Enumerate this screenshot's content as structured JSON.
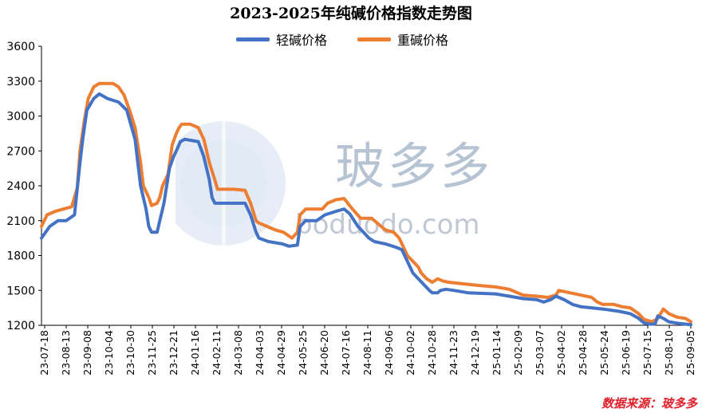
{
  "chart_data": {
    "type": "line",
    "title": "2023-2025年纯碱价格指数走势图",
    "xlabel": "",
    "ylabel": "",
    "ylim": [
      1200,
      3600
    ],
    "yticks": [
      1200,
      1500,
      1800,
      2100,
      2400,
      2700,
      3000,
      3300,
      3600
    ],
    "x_tick_labels": [
      "23-07-18",
      "23-08-13",
      "23-09-08",
      "23-10-04",
      "23-10-30",
      "23-11-25",
      "23-12-21",
      "24-01-16",
      "24-02-11",
      "24-03-08",
      "24-04-03",
      "24-04-29",
      "24-05-25",
      "24-06-20",
      "24-07-16",
      "24-08-11",
      "24-09-06",
      "24-10-02",
      "24-10-28",
      "24-11-23",
      "24-12-19",
      "25-01-14",
      "25-02-09",
      "25-03-07",
      "25-04-02",
      "25-04-28",
      "25-05-24",
      "25-06-19",
      "25-07-15",
      "25-08-10",
      "25-09-05"
    ],
    "grid": false,
    "legend_position": "top-center",
    "series": [
      {
        "name": "轻碱价格",
        "color": "#4472C4",
        "points": [
          [
            0,
            1950
          ],
          [
            6,
            2050
          ],
          [
            12,
            2100
          ],
          [
            18,
            2100
          ],
          [
            24,
            2150
          ],
          [
            28,
            2600
          ],
          [
            30,
            2800
          ],
          [
            33,
            3050
          ],
          [
            38,
            3150
          ],
          [
            42,
            3190
          ],
          [
            48,
            3150
          ],
          [
            56,
            3120
          ],
          [
            62,
            3050
          ],
          [
            68,
            2800
          ],
          [
            72,
            2400
          ],
          [
            76,
            2200
          ],
          [
            78,
            2050
          ],
          [
            80,
            2000
          ],
          [
            84,
            2000
          ],
          [
            86,
            2100
          ],
          [
            89,
            2250
          ],
          [
            93,
            2550
          ],
          [
            96,
            2650
          ],
          [
            98,
            2700
          ],
          [
            101,
            2780
          ],
          [
            104,
            2800
          ],
          [
            114,
            2780
          ],
          [
            118,
            2650
          ],
          [
            122,
            2450
          ],
          [
            124,
            2300
          ],
          [
            126,
            2250
          ],
          [
            130,
            2250
          ],
          [
            148,
            2250
          ],
          [
            152,
            2150
          ],
          [
            156,
            2000
          ],
          [
            158,
            1950
          ],
          [
            165,
            1920
          ],
          [
            175,
            1900
          ],
          [
            180,
            1880
          ],
          [
            186,
            1890
          ],
          [
            188,
            2050
          ],
          [
            192,
            2100
          ],
          [
            200,
            2100
          ],
          [
            206,
            2150
          ],
          [
            214,
            2180
          ],
          [
            220,
            2200
          ],
          [
            224,
            2160
          ],
          [
            230,
            2050
          ],
          [
            234,
            2000
          ],
          [
            238,
            1950
          ],
          [
            242,
            1920
          ],
          [
            250,
            1900
          ],
          [
            258,
            1870
          ],
          [
            262,
            1850
          ],
          [
            270,
            1650
          ],
          [
            274,
            1600
          ],
          [
            278,
            1550
          ],
          [
            282,
            1500
          ],
          [
            284,
            1480
          ],
          [
            288,
            1480
          ],
          [
            290,
            1500
          ],
          [
            294,
            1510
          ],
          [
            300,
            1500
          ],
          [
            310,
            1480
          ],
          [
            330,
            1470
          ],
          [
            340,
            1450
          ],
          [
            350,
            1430
          ],
          [
            360,
            1420
          ],
          [
            365,
            1400
          ],
          [
            370,
            1420
          ],
          [
            374,
            1450
          ],
          [
            380,
            1420
          ],
          [
            386,
            1380
          ],
          [
            392,
            1360
          ],
          [
            400,
            1350
          ],
          [
            408,
            1340
          ],
          [
            420,
            1320
          ],
          [
            428,
            1300
          ],
          [
            434,
            1260
          ],
          [
            438,
            1220
          ],
          [
            442,
            1210
          ],
          [
            446,
            1210
          ],
          [
            448,
            1280
          ],
          [
            452,
            1260
          ],
          [
            456,
            1230
          ],
          [
            464,
            1215
          ],
          [
            472,
            1205
          ]
        ]
      },
      {
        "name": "重碱价格",
        "color": "#ED7D31",
        "points": [
          [
            0,
            2050
          ],
          [
            4,
            2150
          ],
          [
            10,
            2180
          ],
          [
            16,
            2200
          ],
          [
            22,
            2220
          ],
          [
            26,
            2380
          ],
          [
            28,
            2700
          ],
          [
            31,
            2950
          ],
          [
            34,
            3150
          ],
          [
            38,
            3250
          ],
          [
            42,
            3280
          ],
          [
            52,
            3280
          ],
          [
            56,
            3250
          ],
          [
            60,
            3180
          ],
          [
            64,
            3050
          ],
          [
            68,
            2900
          ],
          [
            72,
            2600
          ],
          [
            74,
            2400
          ],
          [
            78,
            2300
          ],
          [
            80,
            2230
          ],
          [
            84,
            2250
          ],
          [
            86,
            2300
          ],
          [
            88,
            2400
          ],
          [
            92,
            2500
          ],
          [
            95,
            2750
          ],
          [
            98,
            2850
          ],
          [
            100,
            2900
          ],
          [
            102,
            2930
          ],
          [
            108,
            2930
          ],
          [
            114,
            2900
          ],
          [
            118,
            2800
          ],
          [
            122,
            2600
          ],
          [
            126,
            2450
          ],
          [
            128,
            2370
          ],
          [
            132,
            2370
          ],
          [
            140,
            2370
          ],
          [
            148,
            2360
          ],
          [
            152,
            2250
          ],
          [
            156,
            2100
          ],
          [
            158,
            2080
          ],
          [
            164,
            2050
          ],
          [
            170,
            2020
          ],
          [
            176,
            2000
          ],
          [
            182,
            1950
          ],
          [
            186,
            2000
          ],
          [
            188,
            2150
          ],
          [
            192,
            2200
          ],
          [
            204,
            2200
          ],
          [
            208,
            2250
          ],
          [
            214,
            2280
          ],
          [
            220,
            2290
          ],
          [
            226,
            2200
          ],
          [
            232,
            2120
          ],
          [
            240,
            2120
          ],
          [
            246,
            2060
          ],
          [
            250,
            2020
          ],
          [
            256,
            2000
          ],
          [
            260,
            1950
          ],
          [
            266,
            1800
          ],
          [
            270,
            1750
          ],
          [
            274,
            1700
          ],
          [
            276,
            1650
          ],
          [
            280,
            1600
          ],
          [
            284,
            1570
          ],
          [
            288,
            1600
          ],
          [
            292,
            1580
          ],
          [
            296,
            1570
          ],
          [
            304,
            1560
          ],
          [
            312,
            1550
          ],
          [
            320,
            1540
          ],
          [
            330,
            1530
          ],
          [
            340,
            1510
          ],
          [
            346,
            1480
          ],
          [
            350,
            1460
          ],
          [
            360,
            1450
          ],
          [
            368,
            1440
          ],
          [
            374,
            1460
          ],
          [
            376,
            1500
          ],
          [
            380,
            1490
          ],
          [
            384,
            1480
          ],
          [
            392,
            1460
          ],
          [
            400,
            1440
          ],
          [
            404,
            1400
          ],
          [
            408,
            1380
          ],
          [
            416,
            1380
          ],
          [
            422,
            1360
          ],
          [
            428,
            1350
          ],
          [
            434,
            1300
          ],
          [
            438,
            1250
          ],
          [
            444,
            1230
          ],
          [
            448,
            1260
          ],
          [
            452,
            1340
          ],
          [
            456,
            1300
          ],
          [
            462,
            1270
          ],
          [
            468,
            1260
          ],
          [
            472,
            1230
          ]
        ]
      }
    ]
  },
  "source_note": "数据来源：玻多多",
  "watermark": {
    "text_cn": "玻多多",
    "text_url": "boduodo.com"
  }
}
